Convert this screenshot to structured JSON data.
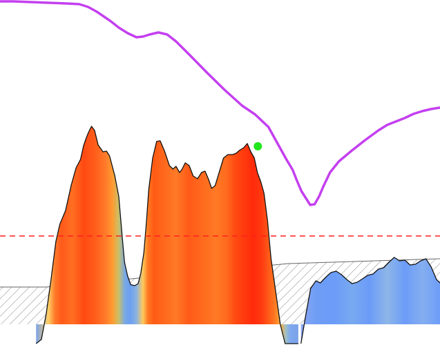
{
  "chart_data": {
    "type": "area",
    "title": "",
    "xlabel": "",
    "ylabel": "",
    "grid": false,
    "legend": "none",
    "xlim": [
      0,
      100
    ],
    "ylim": [
      0,
      100
    ],
    "threshold": {
      "value": 31.6,
      "color": "#ff1f1f",
      "style": "dashed"
    },
    "baseline_band": {
      "name": "",
      "pattern": "hatched",
      "color": "#999999",
      "x": [
        0,
        10.5,
        65.5,
        100
      ],
      "y": [
        16.8,
        16.8,
        23.6,
        25.0
      ]
    },
    "series": [
      {
        "name": "",
        "kind": "filled-area",
        "gradient": "effort-heat",
        "x": [
          8.2,
          9.4,
          10.5,
          11.6,
          12.7,
          13.6,
          14.9,
          16.2,
          17.3,
          18.3,
          19.0,
          19.6,
          20.1,
          20.8,
          21.5,
          22.3,
          23.4,
          24.2,
          24.9,
          25.4,
          26.1,
          27.0,
          27.8,
          28.3,
          29.0,
          29.7,
          30.6,
          31.4,
          32.0,
          32.7,
          33.3,
          33.8,
          34.7,
          35.6,
          36.4,
          37.4,
          38.5,
          39.3,
          40.0,
          40.8,
          41.4,
          42.1,
          43.0,
          43.9,
          44.9,
          45.8,
          46.6,
          47.4,
          48.1,
          48.9,
          49.8,
          50.8,
          51.8,
          52.9,
          53.7,
          54.4,
          55.4,
          56.2,
          57.0,
          57.8,
          58.5,
          59.3,
          60.0,
          60.8,
          61.6,
          62.6,
          63.7,
          64.8,
          65.6,
          66.8,
          67.8
        ],
        "y": [
          0.4,
          1.6,
          9.0,
          19.0,
          30.0,
          35.0,
          39.0,
          46.4,
          51.4,
          53.8,
          57.8,
          60.0,
          61.6,
          63.4,
          62.2,
          58.0,
          56.0,
          56.2,
          54.8,
          52.4,
          49.0,
          43.0,
          31.0,
          24.0,
          20.0,
          17.5,
          17.2,
          17.8,
          20.8,
          26.8,
          36.0,
          45.0,
          54.2,
          59.0,
          59.2,
          56.2,
          52.0,
          51.0,
          51.8,
          50.0,
          51.0,
          52.8,
          52.0,
          49.0,
          48.2,
          50.0,
          50.4,
          48.0,
          45.4,
          46.2,
          50.0,
          54.2,
          55.2,
          55.2,
          55.6,
          56.4,
          57.2,
          58.4,
          56.0,
          54.2,
          50.0,
          47.2,
          44.0,
          36.0,
          25.0,
          16.0,
          6.0,
          0.4,
          0.4,
          0.4,
          0.4
        ]
      },
      {
        "name": "",
        "kind": "filled-area",
        "gradient": "blue",
        "x": [
          68.4,
          69.4,
          70.6,
          71.8,
          72.8,
          74.0,
          75.2,
          76.4,
          77.6,
          78.8,
          80.0,
          81.2,
          82.4,
          83.6,
          84.8,
          86.0,
          87.2,
          88.4,
          89.6,
          90.8,
          92.0,
          93.2,
          94.4,
          95.6,
          96.8,
          98.0,
          99.2,
          100.0
        ],
        "y": [
          0.4,
          8.0,
          16.4,
          18.6,
          18.0,
          19.6,
          21.0,
          21.4,
          20.4,
          19.0,
          17.8,
          18.2,
          19.2,
          20.2,
          20.6,
          22.0,
          22.4,
          24.0,
          25.4,
          24.4,
          24.6,
          23.2,
          23.4,
          24.4,
          25.0,
          22.6,
          19.0,
          18.0
        ]
      },
      {
        "name": "",
        "kind": "line",
        "color": "#c43ff0",
        "x": [
          0,
          3,
          7,
          11,
          15,
          18,
          20,
          22,
          25,
          27,
          29,
          31,
          32.5,
          34,
          36,
          38,
          40,
          43,
          47,
          51,
          55,
          58,
          61,
          63,
          65,
          66.5,
          67.5,
          68.5,
          69.5,
          70.5,
          71.5,
          72.5,
          73.5,
          75,
          77,
          80,
          83,
          86,
          88,
          90,
          92,
          94,
          96,
          98,
          100
        ],
        "y": [
          99.6,
          99.6,
          99.4,
          99.2,
          99.0,
          98.8,
          98.0,
          96.6,
          94.0,
          92.0,
          90.4,
          89.2,
          89.4,
          90.0,
          90.6,
          90.0,
          88.0,
          84.2,
          79.0,
          74.0,
          69.4,
          66.8,
          63.2,
          58.6,
          54.0,
          50.8,
          47.6,
          44.6,
          42.6,
          40.6,
          40.8,
          43.0,
          46.0,
          50.0,
          53.2,
          56.4,
          59.4,
          62.2,
          63.8,
          64.8,
          65.8,
          67.0,
          67.8,
          68.4,
          68.8
        ]
      }
    ],
    "markers": [
      {
        "x": 58.6,
        "y": 57.6,
        "color": "#22e61e"
      }
    ],
    "gradients": {
      "effort-heat": {
        "x": [
          8.2,
          11.0,
          12.5,
          14.0,
          16.5,
          19.0,
          21.5,
          24.0,
          25.6,
          27.0,
          28.4,
          29.6,
          31.0,
          32.5,
          33.6,
          35.0,
          37.5,
          40.0,
          43.0,
          46.0,
          49.0,
          51.5,
          53.5,
          55.5,
          57.5,
          59.5,
          61.0,
          62.5,
          63.8,
          65.0,
          66.0,
          67.8
        ],
        "colors": [
          "#7aa2e8",
          "#ffd066",
          "#ff7a2a",
          "#ff5a1a",
          "#ff6f22",
          "#ff4a12",
          "#ff5c1a",
          "#ff7a2a",
          "#ff9b30",
          "#c8c06a",
          "#78a8e6",
          "#6d9ff0",
          "#8ab3e0",
          "#ffc85a",
          "#ff7a22",
          "#ff5a14",
          "#ff6a1e",
          "#ff7a26",
          "#ff5a18",
          "#ff6a1e",
          "#ff7a24",
          "#ff6a1e",
          "#ff4a12",
          "#ff3a0e",
          "#ff2a0a",
          "#ff3a10",
          "#ff5a18",
          "#ff7a22",
          "#ffb040",
          "#9cc0c8",
          "#7fa8f0",
          "#7aa2e8"
        ]
      },
      "blue": {
        "x": [
          68.4,
          72.0,
          76.0,
          80.0,
          84.0,
          88.0,
          92.0,
          96.0,
          100.0
        ],
        "colors": [
          "#8aa6f0",
          "#6f9df6",
          "#6a9cf8",
          "#78a9f0",
          "#6b9bf8",
          "#8fb6e8",
          "#6b9cf8",
          "#85aef0",
          "#6d9cf8"
        ]
      }
    }
  }
}
